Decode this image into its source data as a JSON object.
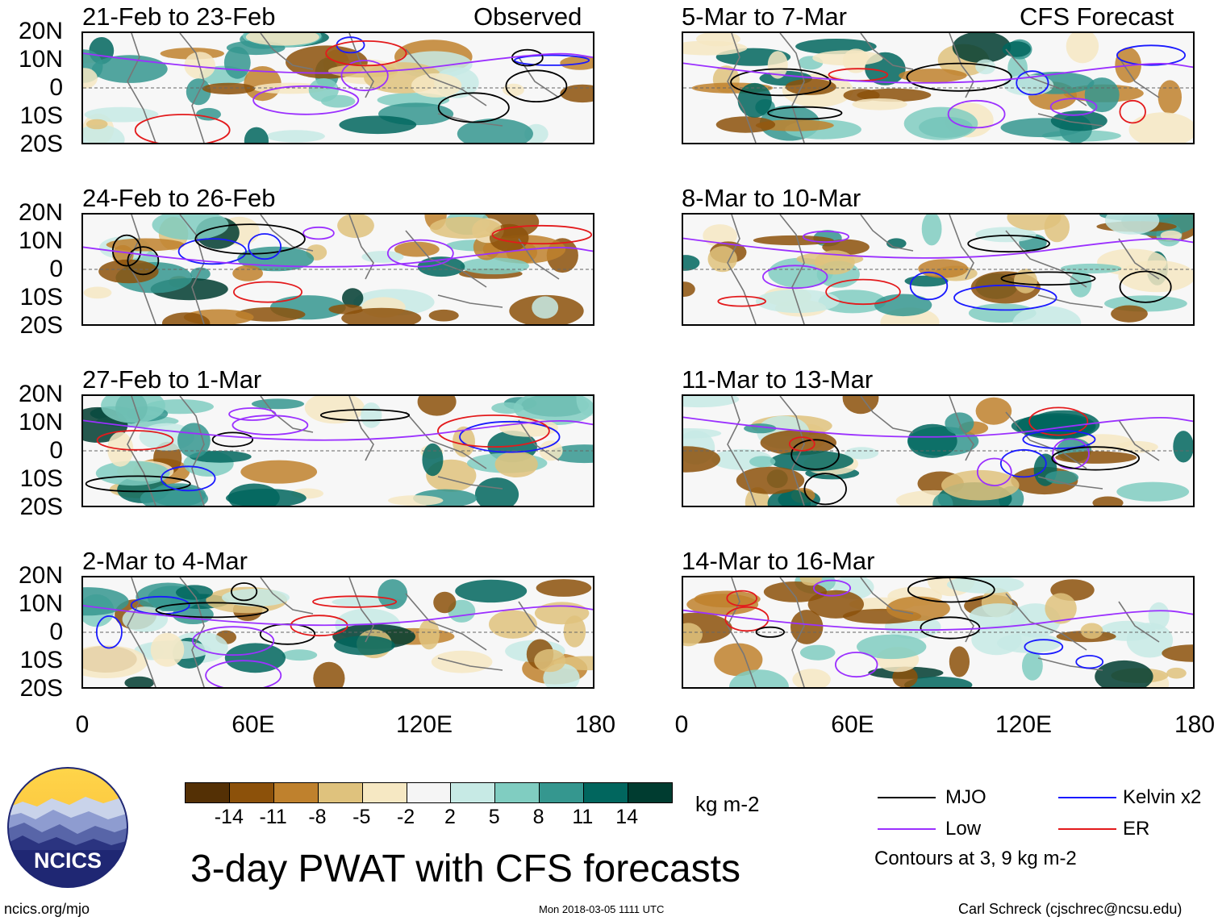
{
  "header": {
    "observed_label": "Observed",
    "forecast_label": "CFS Forecast"
  },
  "panels": [
    {
      "title": "21-Feb to 23-Feb",
      "group": "observed"
    },
    {
      "title": "24-Feb to 26-Feb",
      "group": "observed"
    },
    {
      "title": "27-Feb to 1-Mar",
      "group": "observed"
    },
    {
      "title": "2-Mar to 4-Mar",
      "group": "observed"
    },
    {
      "title": "5-Mar to 7-Mar",
      "group": "forecast"
    },
    {
      "title": "8-Mar to 10-Mar",
      "group": "forecast"
    },
    {
      "title": "11-Mar to 13-Mar",
      "group": "forecast"
    },
    {
      "title": "14-Mar to 16-Mar",
      "group": "forecast"
    }
  ],
  "axes": {
    "lat_labels": [
      "20N",
      "10N",
      "0",
      "10S",
      "20S"
    ],
    "lon_labels": [
      "0",
      "60E",
      "120E",
      "180"
    ]
  },
  "colorbar": {
    "colors": [
      "#543005",
      "#8c510a",
      "#bf812d",
      "#dfc27d",
      "#f6e8c3",
      "#f5f5f5",
      "#c7eae5",
      "#80cdc1",
      "#35978f",
      "#01665e",
      "#003c30"
    ],
    "ticks": [
      "-14",
      "-11",
      "-8",
      "-5",
      "-2",
      "2",
      "5",
      "8",
      "11",
      "14"
    ],
    "units": "kg m-2"
  },
  "legend": {
    "items": [
      {
        "label": "MJO",
        "color": "#000000"
      },
      {
        "label": "Kelvin x2",
        "color": "#1a1aff"
      },
      {
        "label": "Low",
        "color": "#9b30ff"
      },
      {
        "label": "ER",
        "color": "#e31a1c"
      }
    ],
    "note": "Contours at 3, 9 kg m-2"
  },
  "footer": {
    "main_title": "3-day PWAT with CFS forecasts",
    "logo_text": "NCICS",
    "site": "ncics.org/mjo",
    "timestamp": "Mon 2018-03-05 1111 UTC",
    "author": "Carl Schreck (cjschrec@ncsu.edu)"
  }
}
